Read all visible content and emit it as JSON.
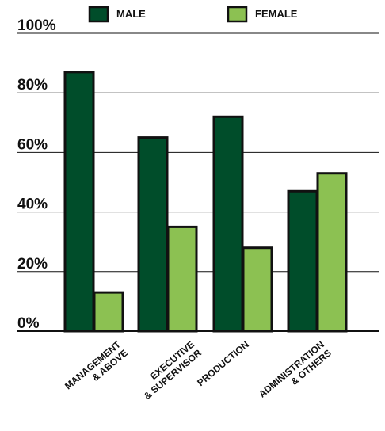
{
  "colors": {
    "male": "#004d2a",
    "female": "#8cc152"
  },
  "legend": [
    {
      "label": "MALE",
      "series": "male"
    },
    {
      "label": "FEMALE",
      "series": "female"
    }
  ],
  "chart_data": {
    "type": "bar",
    "categories": [
      [
        "MANAGEMENT",
        "& ABOVE"
      ],
      [
        "EXECUTIVE",
        "& SUPERVISOR"
      ],
      [
        "PRODUCTION"
      ],
      [
        "ADMINISTRATION",
        "& OTHERS"
      ]
    ],
    "series": [
      {
        "name": "MALE",
        "key": "male",
        "values": [
          87,
          65,
          72,
          47
        ]
      },
      {
        "name": "FEMALE",
        "key": "female",
        "values": [
          13,
          35,
          28,
          53
        ]
      }
    ],
    "yticks": [
      "0%",
      "20%",
      "40%",
      "60%",
      "80%",
      "100%"
    ],
    "ytick_values": [
      0,
      20,
      40,
      60,
      80,
      100
    ],
    "ylim": [
      0,
      100
    ],
    "grid": true,
    "legend_position": "top"
  }
}
